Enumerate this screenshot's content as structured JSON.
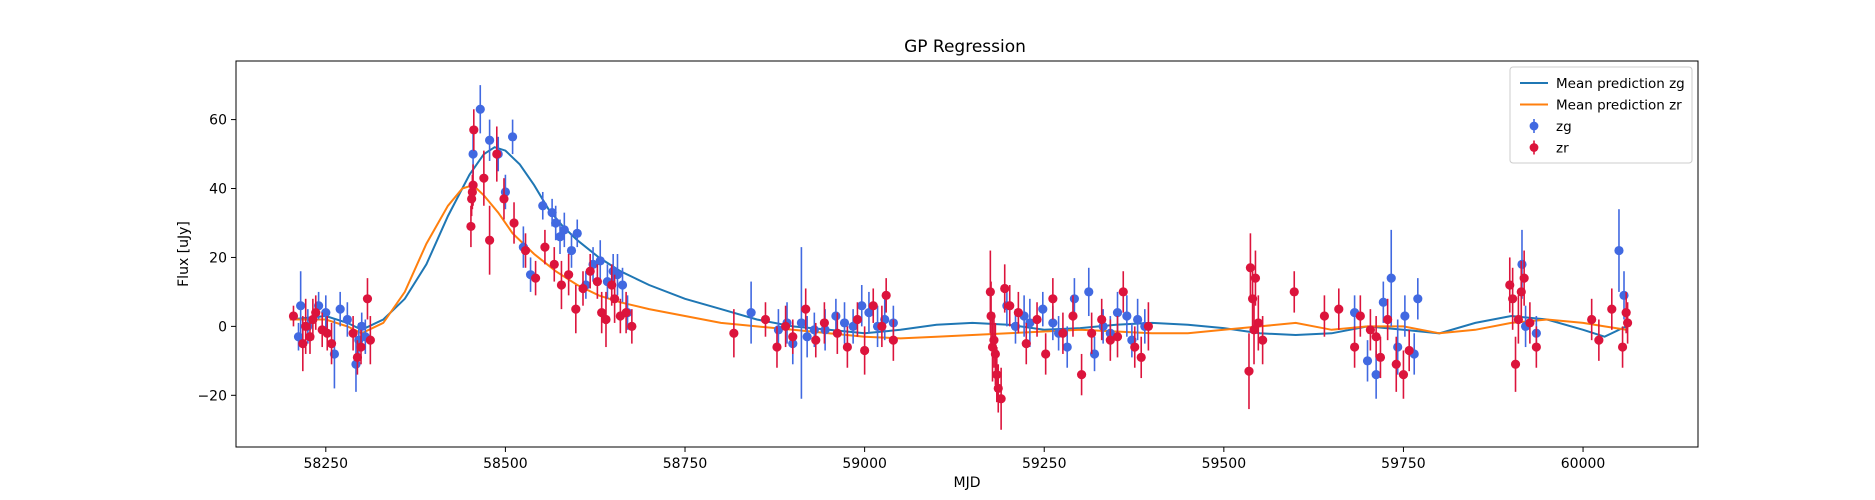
{
  "chart_data": {
    "type": "scatter",
    "title": "GP Regression",
    "xlabel": "MJD",
    "ylabel": "Flux [uJy]",
    "xlim": [
      58125,
      60160
    ],
    "ylim": [
      -35,
      77
    ],
    "xticks": [
      58250,
      58500,
      58750,
      59000,
      59250,
      59500,
      59750,
      60000
    ],
    "yticks": [
      -20,
      0,
      20,
      40,
      60
    ],
    "legend_position": "top-right",
    "legend": [
      {
        "label": "Mean prediction zg",
        "kind": "line",
        "color": "#1f77b4"
      },
      {
        "label": "Mean prediction zr",
        "kind": "line",
        "color": "#ff7f0e"
      },
      {
        "label": "zg",
        "kind": "errorbar",
        "color": "#4169e1"
      },
      {
        "label": "zr",
        "kind": "errorbar",
        "color": "#dc143c"
      }
    ],
    "lines": [
      {
        "name": "Mean prediction zg",
        "color": "#1f77b4",
        "x": [
          58200,
          58250,
          58280,
          58300,
          58330,
          58360,
          58390,
          58420,
          58450,
          58470,
          58485,
          58500,
          58520,
          58540,
          58560,
          58580,
          58600,
          58630,
          58660,
          58700,
          58750,
          58800,
          58850,
          58900,
          58950,
          59000,
          59050,
          59100,
          59150,
          59200,
          59250,
          59300,
          59350,
          59400,
          59450,
          59500,
          59550,
          59600,
          59650,
          59700,
          59750,
          59800,
          59850,
          59900,
          59950,
          60000,
          60030,
          60060
        ],
        "y": [
          2,
          3,
          1,
          -1,
          2,
          8,
          18,
          32,
          44,
          50,
          52,
          51,
          47,
          41,
          34,
          29,
          25,
          20,
          16,
          12,
          8,
          5,
          2,
          0,
          -1,
          -2,
          -1,
          0.5,
          1,
          0.5,
          -1,
          -0.5,
          0.5,
          1,
          0.5,
          -0.5,
          -2,
          -2.5,
          -2,
          0,
          -1,
          -2,
          1,
          3,
          2,
          -1,
          -3,
          0
        ]
      },
      {
        "name": "Mean prediction zr",
        "color": "#ff7f0e",
        "x": [
          58200,
          58250,
          58280,
          58300,
          58330,
          58360,
          58390,
          58420,
          58440,
          58455,
          58470,
          58490,
          58510,
          58540,
          58570,
          58600,
          58630,
          58660,
          58700,
          58750,
          58800,
          58850,
          58900,
          58950,
          59000,
          59050,
          59100,
          59150,
          59200,
          59250,
          59300,
          59350,
          59400,
          59450,
          59500,
          59550,
          59600,
          59650,
          59700,
          59750,
          59800,
          59850,
          59900,
          59950,
          60000,
          60030,
          60060
        ],
        "y": [
          2,
          2,
          0,
          -2,
          1,
          10,
          24,
          35,
          40,
          41,
          38,
          33,
          27,
          21,
          16,
          12,
          9,
          7,
          5,
          3,
          1,
          0,
          -1,
          -2,
          -3,
          -3.5,
          -3,
          -2.5,
          -2,
          -1.5,
          -1,
          -1.5,
          -2,
          -2,
          -1,
          0,
          1,
          -1,
          0,
          0,
          -2,
          -1,
          1,
          2,
          1,
          0,
          -1
        ]
      }
    ],
    "series": [
      {
        "name": "zg",
        "color": "#4169e1",
        "x": [
          58212,
          58215,
          58225,
          58240,
          58250,
          58262,
          58270,
          58280,
          58292,
          58296,
          58300,
          58305,
          58455,
          58465,
          58478,
          58490,
          58500,
          58510,
          58525,
          58535,
          58552,
          58565,
          58570,
          58576,
          58582,
          58592,
          58600,
          58612,
          58622,
          58632,
          58642,
          58650,
          58656,
          58663,
          58670,
          58842,
          58880,
          58892,
          58900,
          58912,
          58920,
          58930,
          58945,
          58960,
          58972,
          58984,
          58996,
          59006,
          59018,
          59028,
          59040,
          59198,
          59210,
          59222,
          59230,
          59248,
          59262,
          59270,
          59282,
          59292,
          59312,
          59320,
          59332,
          59342,
          59352,
          59365,
          59372,
          59380,
          59390,
          59682,
          59700,
          59712,
          59722,
          59733,
          59742,
          59752,
          59765,
          59770,
          59915,
          59920,
          59935,
          60050,
          60057
        ],
        "y": [
          -3,
          6,
          0,
          6,
          4,
          -8,
          5,
          2,
          -11,
          -4,
          0,
          -3,
          50,
          63,
          54,
          50,
          39,
          55,
          23,
          15,
          35,
          33,
          30,
          26,
          28,
          22,
          27,
          12,
          18,
          19,
          13,
          16,
          15,
          12,
          4,
          4,
          -1,
          1,
          -5,
          1,
          -3,
          -1,
          -1,
          3,
          1,
          0,
          6,
          4,
          0,
          2,
          1,
          6,
          0,
          3,
          1,
          5,
          1,
          -2,
          -6,
          8,
          10,
          -8,
          0,
          -2,
          4,
          3,
          -4,
          2,
          0,
          4,
          -10,
          -14,
          7,
          14,
          -6,
          3,
          -8,
          8,
          18,
          0,
          -2,
          22,
          9
        ],
        "err": [
          4,
          10,
          5,
          4,
          5,
          10,
          5,
          5,
          8,
          5,
          4,
          5,
          6,
          7,
          6,
          5,
          5,
          5,
          6,
          5,
          4,
          4,
          5,
          5,
          5,
          5,
          4,
          4,
          5,
          6,
          5,
          5,
          6,
          5,
          5,
          9,
          6,
          6,
          6,
          22,
          6,
          5,
          6,
          5,
          6,
          5,
          6,
          6,
          6,
          6,
          5,
          6,
          5,
          6,
          7,
          5,
          5,
          5,
          6,
          6,
          7,
          5,
          5,
          5,
          6,
          6,
          5,
          6,
          5,
          5,
          6,
          7,
          6,
          14,
          8,
          6,
          6,
          6,
          10,
          6,
          5,
          12,
          7
        ]
      },
      {
        "name": "zr",
        "color": "#dc143c",
        "x": [
          58205,
          58218,
          58222,
          58228,
          58232,
          58236,
          58245,
          58252,
          58258,
          58288,
          58294,
          58299,
          58308,
          58312,
          58452,
          58453,
          58454,
          58455,
          58456,
          58470,
          58478,
          58488,
          58498,
          58512,
          58528,
          58542,
          58555,
          58568,
          58578,
          58588,
          58598,
          58608,
          58618,
          58628,
          58634,
          58640,
          58648,
          58652,
          58660,
          58668,
          58676,
          58818,
          58862,
          58878,
          58890,
          58900,
          58918,
          58932,
          58944,
          58962,
          58976,
          58990,
          59000,
          59012,
          59024,
          59030,
          59040,
          59175,
          59176,
          59178,
          59180,
          59182,
          59184,
          59186,
          59190,
          59195,
          59202,
          59214,
          59225,
          59240,
          59252,
          59262,
          59276,
          59290,
          59302,
          59316,
          59330,
          59342,
          59352,
          59360,
          59376,
          59385,
          59395,
          59535,
          59537,
          59540,
          59542,
          59544,
          59548,
          59554,
          59598,
          59640,
          59660,
          59682,
          59690,
          59704,
          59712,
          59718,
          59728,
          59740,
          59750,
          59758,
          59898,
          59902,
          59906,
          59910,
          59914,
          59918,
          59926,
          59935,
          60012,
          60022,
          60040,
          60055,
          60060,
          60062
        ],
        "y": [
          3,
          -5,
          0,
          -3,
          2,
          4,
          -1,
          -2,
          -5,
          -2,
          -9,
          -6,
          8,
          -4,
          29,
          37,
          39,
          41,
          57,
          43,
          25,
          50,
          37,
          30,
          22,
          14,
          23,
          18,
          12,
          15,
          5,
          11,
          16,
          13,
          4,
          2,
          12,
          8,
          3,
          4,
          0,
          -2,
          2,
          -6,
          0,
          -3,
          5,
          -4,
          1,
          -2,
          -6,
          2,
          -7,
          6,
          0,
          9,
          -4,
          10,
          3,
          -6,
          -4,
          -8,
          -14,
          -18,
          -21,
          11,
          6,
          4,
          -5,
          2,
          -8,
          8,
          -2,
          3,
          -14,
          -2,
          2,
          -4,
          -3,
          10,
          -6,
          -9,
          0,
          -13,
          17,
          8,
          -1,
          14,
          1,
          -4,
          10,
          3,
          5,
          -6,
          3,
          -1,
          -3,
          -9,
          2,
          -11,
          -14,
          -7,
          12,
          8,
          -11,
          2,
          10,
          14,
          1,
          -6,
          2,
          -4,
          5,
          -6,
          4,
          1
        ],
        "err": [
          3,
          8,
          8,
          5,
          6,
          5,
          5,
          5,
          6,
          5,
          5,
          5,
          6,
          7,
          6,
          5,
          5,
          6,
          6,
          8,
          10,
          8,
          6,
          6,
          5,
          5,
          5,
          5,
          7,
          6,
          7,
          5,
          5,
          5,
          6,
          8,
          6,
          7,
          5,
          6,
          5,
          7,
          5,
          6,
          6,
          5,
          6,
          5,
          6,
          6,
          6,
          5,
          7,
          5,
          6,
          5,
          6,
          12,
          10,
          10,
          8,
          9,
          8,
          7,
          9,
          7,
          6,
          6,
          6,
          5,
          6,
          6,
          6,
          6,
          6,
          6,
          6,
          6,
          6,
          6,
          6,
          6,
          7,
          11,
          10,
          8,
          10,
          8,
          8,
          7,
          6,
          6,
          6,
          6,
          6,
          6,
          6,
          6,
          6,
          8,
          7,
          6,
          8,
          9,
          8,
          7,
          9,
          8,
          6,
          6,
          6,
          6,
          6,
          6,
          6,
          6
        ]
      }
    ]
  }
}
